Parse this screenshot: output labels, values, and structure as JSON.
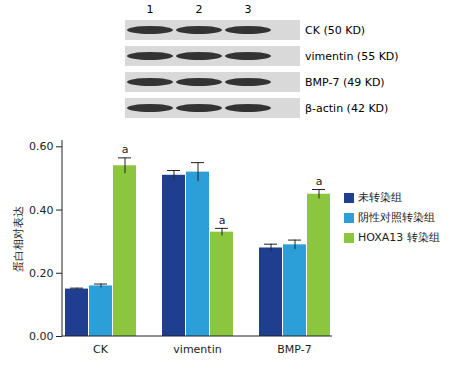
{
  "blot": {
    "lanes": [
      "1",
      "2",
      "3"
    ],
    "proteins": [
      "CK (50 KD)",
      "vimentin (55 KD)",
      "BMP-7 (49 KD)",
      "β-actin (42 KD)"
    ]
  },
  "chart_data": {
    "type": "bar",
    "ylabel": "蛋白相对表达",
    "categories": [
      "CK",
      "vimentin",
      "BMP-7"
    ],
    "series": [
      {
        "name": "未转染组",
        "color": "#1f3e8f",
        "values": [
          0.15,
          0.51,
          0.28
        ],
        "errors": [
          0.003,
          0.015,
          0.012
        ]
      },
      {
        "name": "阴性对照转染组",
        "color": "#2c9fd9",
        "values": [
          0.16,
          0.52,
          0.29
        ],
        "errors": [
          0.006,
          0.03,
          0.015
        ]
      },
      {
        "name": "HOXA13 转染组",
        "color": "#8cc63f",
        "values": [
          0.54,
          0.33,
          0.45
        ],
        "errors": [
          0.025,
          0.012,
          0.015
        ],
        "annotations": [
          "a",
          "a",
          "a"
        ]
      }
    ],
    "ylim": [
      0,
      0.62
    ],
    "yticks": [
      0,
      0.2,
      0.4,
      0.6
    ],
    "grid": false,
    "legend": "right"
  }
}
